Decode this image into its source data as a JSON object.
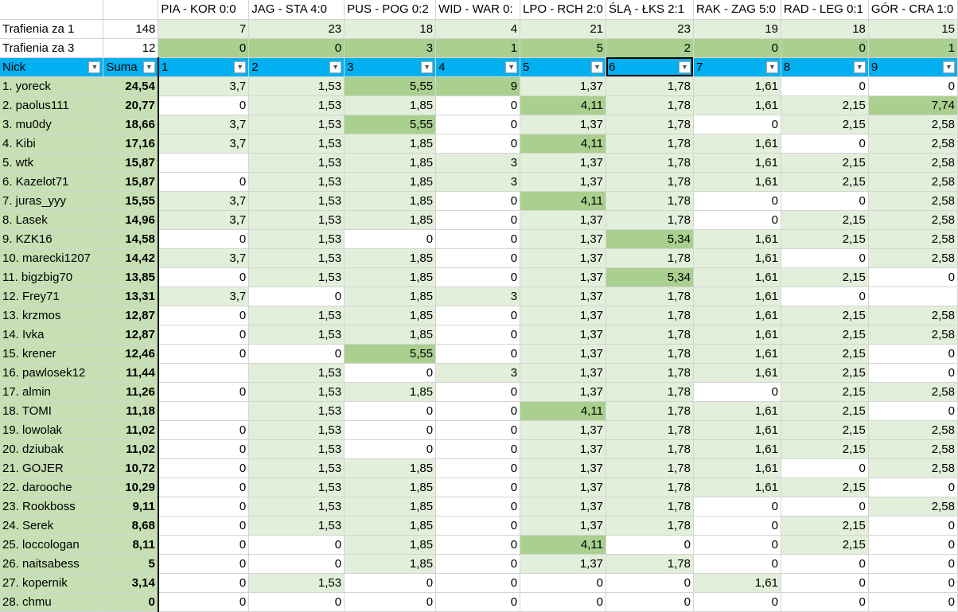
{
  "matches": [
    "PIA - KOR 0:0",
    "JAG - STA 4:0",
    "PUS - POG 0:2",
    "WID - WAR 0:",
    "LPO - RCH 2:0",
    "ŚLĄ - ŁKS 2:1",
    "RAK - ZAG 5:0",
    "RAD - LEG 0:1",
    "GÓR - CRA 1:0"
  ],
  "hits1": {
    "label": "Trafienia za 1",
    "total": "148",
    "values": [
      "7",
      "23",
      "18",
      "4",
      "21",
      "23",
      "19",
      "18",
      "15"
    ]
  },
  "hits3": {
    "label": "Trafienia za 3",
    "total": "12",
    "values": [
      "0",
      "0",
      "3",
      "1",
      "5",
      "2",
      "0",
      "0",
      "1"
    ]
  },
  "header": {
    "nick": "Nick",
    "suma": "Suma",
    "cols": [
      "1",
      "2",
      "3",
      "4",
      "5",
      "6",
      "7",
      "8",
      "9"
    ],
    "dropdown_icon": "▼"
  },
  "colors": {
    "header_blue": "#00b0f0",
    "light_green": "#e2efda",
    "dark_green": "#a9d08e",
    "mid_green": "#c6e0b4"
  },
  "rows": [
    {
      "nick": "1.  yoreck",
      "sum": "24,54",
      "v": [
        "3,7",
        "1,53",
        "5,55",
        "9",
        "1,37",
        "1,78",
        "1,61",
        "0",
        "0"
      ]
    },
    {
      "nick": "2.  paolus111",
      "sum": "20,77",
      "v": [
        "0",
        "1,53",
        "1,85",
        "0",
        "4,11",
        "1,78",
        "1,61",
        "2,15",
        "7,74"
      ]
    },
    {
      "nick": "3.  mu0dy",
      "sum": "18,66",
      "v": [
        "3,7",
        "1,53",
        "5,55",
        "0",
        "1,37",
        "1,78",
        "0",
        "2,15",
        "2,58"
      ]
    },
    {
      "nick": "4.  Kibi",
      "sum": "17,16",
      "v": [
        "3,7",
        "1,53",
        "1,85",
        "0",
        "4,11",
        "1,78",
        "1,61",
        "0",
        "2,58"
      ]
    },
    {
      "nick": "5.  wtk",
      "sum": "15,87",
      "v": [
        "",
        "1,53",
        "1,85",
        "3",
        "1,37",
        "1,78",
        "1,61",
        "2,15",
        "2,58"
      ]
    },
    {
      "nick": "6.  Kazelot71",
      "sum": "15,87",
      "v": [
        "0",
        "1,53",
        "1,85",
        "3",
        "1,37",
        "1,78",
        "1,61",
        "2,15",
        "2,58"
      ]
    },
    {
      "nick": "7.  juras_yyy",
      "sum": "15,55",
      "v": [
        "3,7",
        "1,53",
        "1,85",
        "0",
        "4,11",
        "1,78",
        "0",
        "0",
        "2,58"
      ]
    },
    {
      "nick": "8.  Lasek",
      "sum": "14,96",
      "v": [
        "3,7",
        "1,53",
        "1,85",
        "0",
        "1,37",
        "1,78",
        "0",
        "2,15",
        "2,58"
      ]
    },
    {
      "nick": "9.  KZK16",
      "sum": "14,58",
      "v": [
        "0",
        "1,53",
        "0",
        "0",
        "1,37",
        "5,34",
        "1,61",
        "2,15",
        "2,58"
      ]
    },
    {
      "nick": "10.  marecki1207",
      "sum": "14,42",
      "v": [
        "3,7",
        "1,53",
        "1,85",
        "0",
        "1,37",
        "1,78",
        "1,61",
        "0",
        "2,58"
      ]
    },
    {
      "nick": "11.  bigzbig70",
      "sum": "13,85",
      "v": [
        "0",
        "1,53",
        "1,85",
        "0",
        "1,37",
        "5,34",
        "1,61",
        "2,15",
        "0"
      ]
    },
    {
      "nick": "12.  Frey71",
      "sum": "13,31",
      "v": [
        "3,7",
        "0",
        "1,85",
        "3",
        "1,37",
        "1,78",
        "1,61",
        "0",
        ""
      ]
    },
    {
      "nick": "13.  krzmos",
      "sum": "12,87",
      "v": [
        "0",
        "1,53",
        "1,85",
        "0",
        "1,37",
        "1,78",
        "1,61",
        "2,15",
        "2,58"
      ]
    },
    {
      "nick": "14.  Ivka",
      "sum": "12,87",
      "v": [
        "0",
        "1,53",
        "1,85",
        "0",
        "1,37",
        "1,78",
        "1,61",
        "2,15",
        "2,58"
      ]
    },
    {
      "nick": "15.  krener",
      "sum": "12,46",
      "v": [
        "0",
        "0",
        "5,55",
        "0",
        "1,37",
        "1,78",
        "1,61",
        "2,15",
        "0"
      ]
    },
    {
      "nick": "16.  pawlosek12",
      "sum": "11,44",
      "v": [
        "",
        "1,53",
        "0",
        "3",
        "1,37",
        "1,78",
        "1,61",
        "2,15",
        "0"
      ]
    },
    {
      "nick": "17.  almin",
      "sum": "11,26",
      "v": [
        "0",
        "1,53",
        "1,85",
        "0",
        "1,37",
        "1,78",
        "0",
        "2,15",
        "2,58"
      ]
    },
    {
      "nick": "18.  TOMI",
      "sum": "11,18",
      "v": [
        "",
        "1,53",
        "0",
        "0",
        "4,11",
        "1,78",
        "1,61",
        "2,15",
        "0"
      ]
    },
    {
      "nick": "19.  lowolak",
      "sum": "11,02",
      "v": [
        "0",
        "1,53",
        "0",
        "0",
        "1,37",
        "1,78",
        "1,61",
        "2,15",
        "2,58"
      ]
    },
    {
      "nick": "20.  dziubak",
      "sum": "11,02",
      "v": [
        "0",
        "1,53",
        "0",
        "0",
        "1,37",
        "1,78",
        "1,61",
        "2,15",
        "2,58"
      ]
    },
    {
      "nick": "21.  GOJER",
      "sum": "10,72",
      "v": [
        "0",
        "1,53",
        "1,85",
        "0",
        "1,37",
        "1,78",
        "1,61",
        "0",
        "2,58"
      ]
    },
    {
      "nick": "22.  darooche",
      "sum": "10,29",
      "v": [
        "0",
        "1,53",
        "1,85",
        "0",
        "1,37",
        "1,78",
        "1,61",
        "2,15",
        "0"
      ]
    },
    {
      "nick": "23.  Rookboss",
      "sum": "9,11",
      "v": [
        "0",
        "1,53",
        "1,85",
        "0",
        "1,37",
        "1,78",
        "0",
        "0",
        "2,58"
      ]
    },
    {
      "nick": "24.  Serek",
      "sum": "8,68",
      "v": [
        "0",
        "1,53",
        "1,85",
        "0",
        "1,37",
        "1,78",
        "0",
        "2,15",
        "0"
      ]
    },
    {
      "nick": "25.  loccologan",
      "sum": "8,11",
      "v": [
        "0",
        "0",
        "1,85",
        "0",
        "4,11",
        "0",
        "0",
        "2,15",
        "0"
      ]
    },
    {
      "nick": "26.  naitsabess",
      "sum": "5",
      "v": [
        "0",
        "0",
        "1,85",
        "0",
        "1,37",
        "1,78",
        "0",
        "0",
        "0"
      ]
    },
    {
      "nick": "27.  kopernik",
      "sum": "3,14",
      "v": [
        "0",
        "1,53",
        "0",
        "0",
        "0",
        "0",
        "1,61",
        "0",
        "0"
      ]
    },
    {
      "nick": "28.  chmu",
      "sum": "0",
      "v": [
        "0",
        "0",
        "0",
        "0",
        "0",
        "0",
        "0",
        "0",
        "0"
      ]
    }
  ]
}
